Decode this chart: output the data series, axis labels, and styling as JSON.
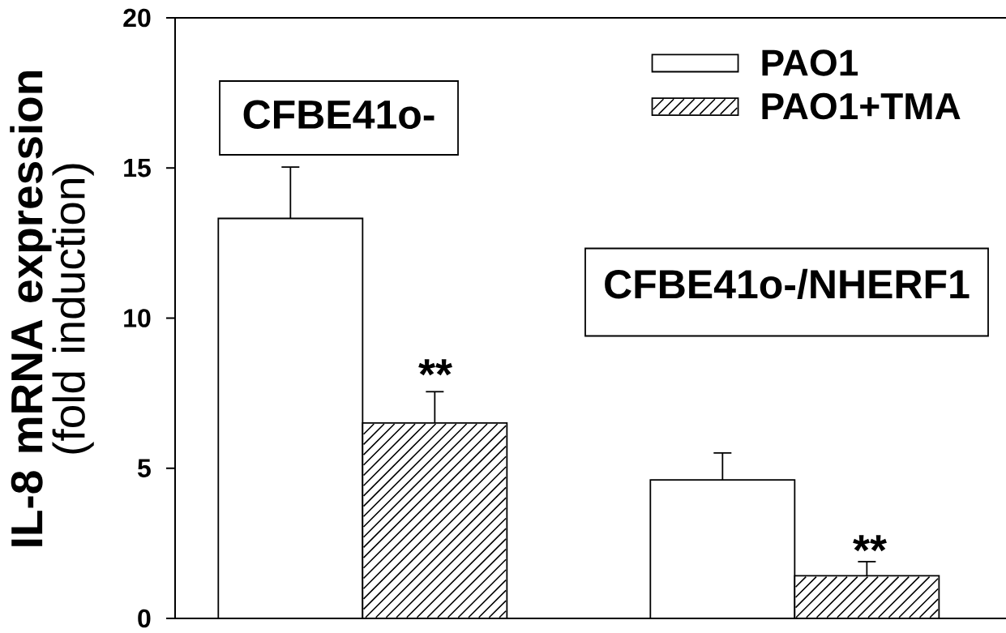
{
  "chart_data": {
    "type": "bar",
    "ylabel": "**IL-8 mRNA expression** (fold induction)",
    "categories": [
      null,
      null
    ],
    "series": [
      {
        "name": "PAO1",
        "color": "#ffffff",
        "values": [
          13.32,
          4.61
        ],
        "errors": [
          [
            13.32,
            15.03
          ],
          [
            4.61,
            5.51
          ]
        ]
      },
      {
        "name": "PAO1+TMA",
        "color": "#000000",
        "values": [
          6.51,
          1.42
        ],
        "errors": [
          [
            6.51,
            7.55
          ],
          [
            1.42,
            1.89
          ]
        ]
      }
    ],
    "ylim": [
      0,
      20
    ],
    "yticks": [
      0,
      5,
      10,
      15,
      20
    ],
    "legend": "top right",
    "tick_labels": "y",
    "annotations": [
      "CFBE41o-",
      "CFBE41o-/NHERF1",
      "**",
      "**"
    ]
  }
}
